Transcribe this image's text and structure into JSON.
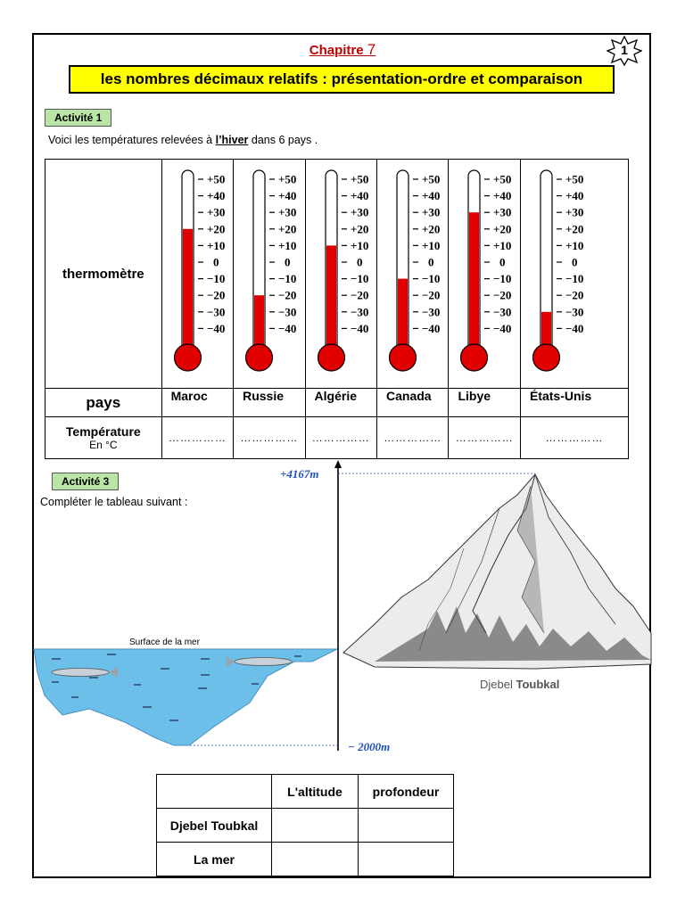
{
  "header": {
    "chapter_label": "Chapitre",
    "chapter_number": "7",
    "page_badge": "1",
    "title": "les nombres décimaux  relatifs : présentation-ordre et comparaison"
  },
  "activity1": {
    "badge": "Activité 1",
    "intro_before": "Voici les températures relevées à ",
    "intro_emphasis": "l’hiver",
    "intro_after": " dans 6 pays .",
    "row_label_thermometer": "thermomètre",
    "row_label_country": "pays",
    "row_label_temp": "Température",
    "row_label_temp_unit": "En °C",
    "scale_ticks": [
      "+50",
      "+40",
      "+30",
      "+20",
      "+10",
      "0",
      "−10",
      "−20",
      "−30",
      "−40"
    ],
    "countries": [
      {
        "name": "Maroc",
        "level_celsius": 20,
        "answer": "……………"
      },
      {
        "name": "Russie",
        "level_celsius": -20,
        "answer": "……………"
      },
      {
        "name": "Algérie",
        "level_celsius": 10,
        "answer": "……………"
      },
      {
        "name": "Canada",
        "level_celsius": -10,
        "answer": "……………"
      },
      {
        "name": "Libye",
        "level_celsius": 30,
        "answer": "……………"
      },
      {
        "name": "États-Unis",
        "level_celsius": -30,
        "answer": "……………"
      }
    ],
    "colors": {
      "mercury": "#e00000"
    }
  },
  "activity3": {
    "badge": "Activité 3",
    "instruction": "Compléter le tableau suivant :",
    "altitude_top": "+4167m",
    "altitude_bottom": "− 2000m",
    "sea_label": "Surface de la mer",
    "mountain_label_prefix": "Djebel ",
    "mountain_label_name": "Toubkal",
    "table": {
      "headers": [
        "",
        "L'altitude",
        "profondeur"
      ],
      "rows": [
        [
          "Djebel Toubkal",
          "",
          ""
        ],
        [
          "La mer",
          "",
          ""
        ]
      ]
    },
    "colors": {
      "sea": "#6cbfe8",
      "annotation": "#1f4fbf"
    }
  }
}
